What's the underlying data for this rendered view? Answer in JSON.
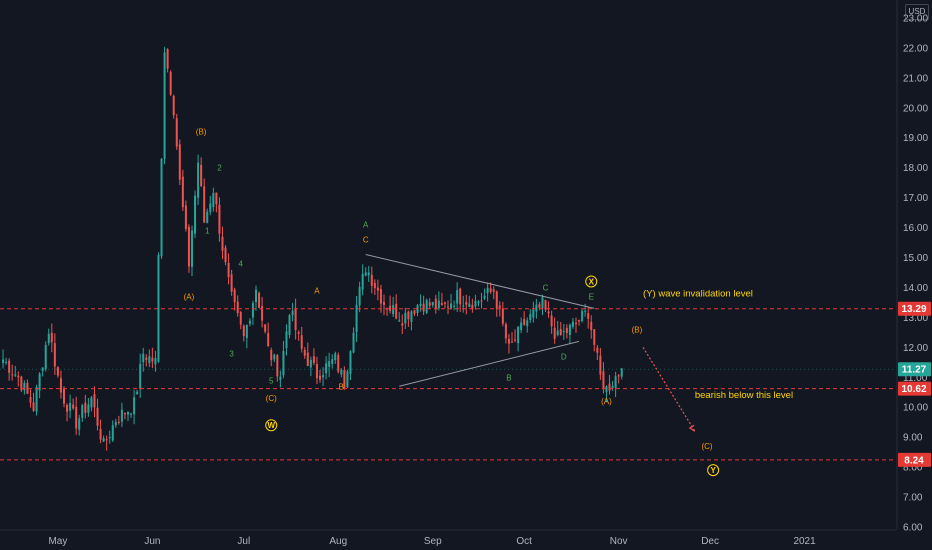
{
  "currency_button": "USD",
  "colors": {
    "background": "#131722",
    "up": "#26a69a",
    "down": "#ef5350",
    "level_line": "#e53935",
    "last_price_badge": "#26a69a",
    "wave_green": "#4caf50",
    "wave_orange": "#ff9800",
    "wave_yellow": "#ffd600",
    "trendline": "#9598a1",
    "arrow": "#ef5350"
  },
  "chart_data": {
    "type": "candlestick",
    "title": "",
    "xlabel": "",
    "ylabel": "",
    "x_tick_labels": [
      "May",
      "Jun",
      "Jul",
      "Aug",
      "Sep",
      "Oct",
      "Nov",
      "Dec",
      "2021"
    ],
    "y_tick_labels": [
      "6.00",
      "7.00",
      "8.00",
      "9.00",
      "10.00",
      "11.00",
      "12.00",
      "13.00",
      "14.00",
      "15.00",
      "16.00",
      "17.00",
      "18.00",
      "19.00",
      "20.00",
      "21.00",
      "22.00",
      "23.00"
    ],
    "ylim": [
      5.9,
      23.6
    ],
    "xlim": [
      "2020-04-12",
      "2021-01-31"
    ],
    "grid": false,
    "price_path": [
      [
        "2020-04-13",
        11.6
      ],
      [
        "2020-04-18",
        11.0
      ],
      [
        "2020-04-23",
        10.0
      ],
      [
        "2020-04-28",
        12.6
      ],
      [
        "2020-05-02",
        10.5
      ],
      [
        "2020-05-07",
        9.5
      ],
      [
        "2020-05-12",
        10.3
      ],
      [
        "2020-05-16",
        8.7
      ],
      [
        "2020-05-20",
        9.6
      ],
      [
        "2020-05-26",
        10.1
      ],
      [
        "2020-05-29",
        11.8
      ],
      [
        "2020-06-02",
        11.5
      ],
      [
        "2020-06-05",
        22.0
      ],
      [
        "2020-06-08",
        20.0
      ],
      [
        "2020-06-10",
        17.5
      ],
      [
        "2020-06-13",
        14.8
      ],
      [
        "2020-06-16",
        18.2
      ],
      [
        "2020-06-18",
        16.2
      ],
      [
        "2020-06-21",
        17.3
      ],
      [
        "2020-06-25",
        14.7
      ],
      [
        "2020-06-27",
        13.6
      ],
      [
        "2020-07-01",
        12.3
      ],
      [
        "2020-07-05",
        14.0
      ],
      [
        "2020-07-09",
        11.9
      ],
      [
        "2020-07-13",
        11.1
      ],
      [
        "2020-07-16",
        13.3
      ],
      [
        "2020-07-20",
        11.9
      ],
      [
        "2020-07-25",
        11.1
      ],
      [
        "2020-07-31",
        11.6
      ],
      [
        "2020-08-03",
        10.8
      ],
      [
        "2020-08-07",
        13.4
      ],
      [
        "2020-08-10",
        14.7
      ],
      [
        "2020-08-16",
        13.5
      ],
      [
        "2020-08-22",
        13.0
      ],
      [
        "2020-08-28",
        13.5
      ],
      [
        "2020-09-04",
        13.3
      ],
      [
        "2020-09-09",
        13.7
      ],
      [
        "2020-09-15",
        13.5
      ],
      [
        "2020-09-21",
        13.9
      ],
      [
        "2020-09-26",
        11.9
      ],
      [
        "2020-10-01",
        12.8
      ],
      [
        "2020-10-07",
        13.4
      ],
      [
        "2020-10-12",
        12.3
      ],
      [
        "2020-10-17",
        12.7
      ],
      [
        "2020-10-22",
        13.2
      ],
      [
        "2020-10-26",
        11.0
      ],
      [
        "2020-10-28",
        10.6
      ],
      [
        "2020-11-02",
        11.3
      ]
    ],
    "levels": [
      {
        "value": 13.29,
        "label": "13.29"
      },
      {
        "value": 10.62,
        "label": "10.62"
      },
      {
        "value": 8.24,
        "label": "8.24"
      }
    ],
    "last_price": {
      "value": 11.27,
      "label": "11.27"
    },
    "wave_labels": [
      {
        "text": "(B)",
        "x": "2020-06-17",
        "y": 19.1,
        "color": "orange"
      },
      {
        "text": "2",
        "x": "2020-06-23",
        "y": 17.9,
        "color": "green"
      },
      {
        "text": "1",
        "x": "2020-06-19",
        "y": 15.8,
        "color": "green"
      },
      {
        "text": "(A)",
        "x": "2020-06-13",
        "y": 13.6,
        "color": "orange"
      },
      {
        "text": "4",
        "x": "2020-06-30",
        "y": 14.7,
        "color": "green"
      },
      {
        "text": "3",
        "x": "2020-06-27",
        "y": 11.7,
        "color": "green"
      },
      {
        "text": "5",
        "x": "2020-07-10",
        "y": 10.8,
        "color": "green"
      },
      {
        "text": "(C)",
        "x": "2020-07-10",
        "y": 10.2,
        "color": "orange"
      },
      {
        "text": "A",
        "x": "2020-07-25",
        "y": 13.8,
        "color": "orange"
      },
      {
        "text": "B",
        "x": "2020-08-02",
        "y": 10.6,
        "color": "orange"
      },
      {
        "text": "A",
        "x": "2020-08-10",
        "y": 16.0,
        "color": "green"
      },
      {
        "text": "C",
        "x": "2020-08-10",
        "y": 15.5,
        "color": "orange"
      },
      {
        "text": "B",
        "x": "2020-09-26",
        "y": 10.9,
        "color": "green"
      },
      {
        "text": "C",
        "x": "2020-10-08",
        "y": 13.9,
        "color": "green"
      },
      {
        "text": "D",
        "x": "2020-10-14",
        "y": 11.6,
        "color": "green"
      },
      {
        "text": "E",
        "x": "2020-10-23",
        "y": 13.6,
        "color": "green"
      },
      {
        "text": "(A)",
        "x": "2020-10-28",
        "y": 10.1,
        "color": "orange"
      },
      {
        "text": "(B)",
        "x": "2020-11-07",
        "y": 12.5,
        "color": "orange"
      },
      {
        "text": "(C)",
        "x": "2020-11-30",
        "y": 8.6,
        "color": "orange"
      }
    ],
    "circled_labels": [
      {
        "text": "W",
        "x": "2020-07-10",
        "y": 9.4,
        "color": "yellow"
      },
      {
        "text": "X",
        "x": "2020-10-23",
        "y": 14.2,
        "color": "yellow"
      },
      {
        "text": "Y",
        "x": "2020-12-02",
        "y": 7.9,
        "color": "yellow"
      }
    ],
    "annotations": [
      {
        "text": "(Y) wave invalidation level",
        "x": "2020-11-09",
        "y": 13.7,
        "color": "yellow"
      },
      {
        "text": "bearish below this level",
        "x": "2020-11-26",
        "y": 10.3,
        "color": "yellow"
      }
    ],
    "triangle_lines": [
      {
        "from": [
          "2020-08-10",
          15.1
        ],
        "to": [
          "2020-10-24",
          13.3
        ]
      },
      {
        "from": [
          "2020-08-21",
          10.7
        ],
        "to": [
          "2020-10-19",
          12.2
        ]
      }
    ],
    "projection_arrow": {
      "from": [
        "2020-11-09",
        12.0
      ],
      "to": [
        "2020-11-26",
        9.2
      ]
    }
  }
}
